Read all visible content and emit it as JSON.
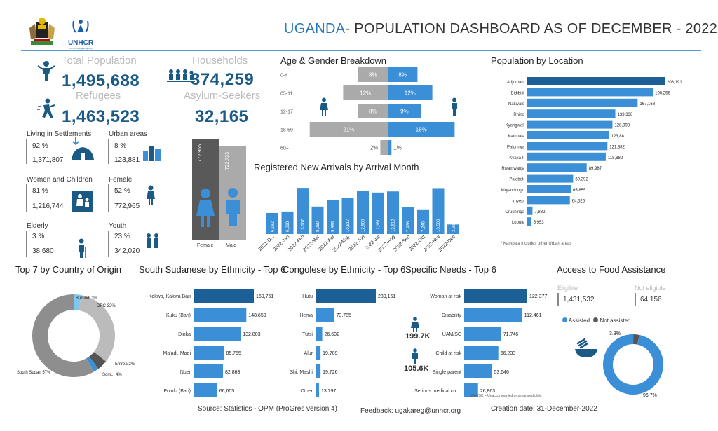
{
  "header": {
    "title_country": "UGANDA",
    "title_rest": "- POPULATION DASHBOARD AS OF DECEMBER - 2022",
    "logo_text": "UNHCR",
    "logo_subtext": "The UN Refugee Agency"
  },
  "kpis": {
    "total_population_label": "Total Population",
    "total_population": "1,495,688",
    "households_label": "Households",
    "households": "374,259",
    "refugees_label": "Refugees",
    "refugees": "1,463,523",
    "asylum_label": "Asylum-Seekers",
    "asylum": "32,165"
  },
  "demographics": {
    "settlements": {
      "label": "Living in Settlements",
      "pct": "92 %",
      "value": "1,371,807"
    },
    "urban": {
      "label": "Urban areas",
      "pct": "8 %",
      "value": "123,881"
    },
    "women_children": {
      "label": "Women and Children",
      "pct": "81 %",
      "value": "1,216,744"
    },
    "female": {
      "label": "Female",
      "pct": "52 %",
      "value": "772,965"
    },
    "elderly": {
      "label": "Elderly",
      "pct": "3 %",
      "value": "38,680"
    },
    "youth": {
      "label": "Youth",
      "pct": "23 %",
      "value": "342,020"
    }
  },
  "gender_bars": {
    "female": {
      "label": "Female",
      "value": "772,965"
    },
    "male": {
      "label": "Male",
      "value": "722,723"
    }
  },
  "sections": {
    "age_gender": "Age & Gender Breakdown",
    "arrivals": "Registered New Arrivals by Arrival Month",
    "location": "Population by Location",
    "location_note": "* Kampala includes other Urban areas",
    "origin": "Top 7 by Country of Origin",
    "ssd": "South Sudanese by Ethnicity - Top 6",
    "cod": "Congolese by Ethnicity - Top 6",
    "needs": "Specific Needs - Top 6",
    "needs_note": "UAM/SC = Unaccompanied or separated child",
    "food": "Access to Food Assistance"
  },
  "needs_people": {
    "female": "199.7K",
    "male": "105.6K"
  },
  "food": {
    "eligible_label": "Eligible",
    "eligible": "1,431,532",
    "not_eligible_label": "Not eligible",
    "not_eligible": "64,156",
    "legend_assisted": "Assisted",
    "legend_not_assisted": "Not assisted"
  },
  "footer": {
    "source": "Source: Statistics - OPM (ProGres version 4)",
    "feedback": "Feedback: ugakareg@unhcr.org",
    "created": "Creation date: 31-December-2022"
  },
  "colors": {
    "accent": "#1c5a86",
    "bar": "#3a8fd6",
    "bar_dark": "#1c5f96",
    "grey": "#999999"
  },
  "chart_data": [
    {
      "id": "age_gender",
      "type": "bar",
      "title": "Age & Gender Breakdown",
      "categories": [
        "0-4",
        "05-11",
        "12-17",
        "18-59",
        "60+"
      ],
      "series": [
        {
          "name": "Female",
          "values": [
            8,
            12,
            8,
            21,
            2
          ],
          "labels": [
            "8%",
            "12%",
            "8%",
            "21%",
            "2%"
          ]
        },
        {
          "name": "Male",
          "values": [
            8,
            12,
            9,
            18,
            1
          ],
          "labels": [
            "8%",
            "12%",
            "9%",
            "18%",
            "1%"
          ]
        }
      ]
    },
    {
      "id": "arrivals",
      "type": "bar",
      "title": "Registered New Arrivals by Arrival Month",
      "categories": [
        "2021-D...",
        "2022-Jan",
        "2022-Feb",
        "2022-Mar",
        "2022-Apr",
        "2022-May",
        "2022-Jun",
        "2022-Jul",
        "2022-Aug",
        "2022-Sep",
        "2022-Oct",
        "2022-Nov",
        "2022-Dec"
      ],
      "values": [
        6182,
        6618,
        13567,
        8069,
        9998,
        10617,
        12589,
        12181,
        12512,
        7976,
        7246,
        13500,
        2816
      ],
      "labels": [
        "6,182",
        "6,618",
        "13,567",
        "8,069",
        "9,998",
        "10,617",
        "12,589",
        "12,181",
        "12,512",
        "7,976",
        "7,246",
        "13,500",
        "2,816"
      ]
    },
    {
      "id": "location",
      "type": "bar",
      "title": "Population by Location",
      "categories": [
        "Adjumani",
        "Bidibidi",
        "Nakivale",
        "Rhino",
        "Kyangwali",
        "Kampala",
        "Palorinya",
        "Kyaka II",
        "Rwamwanja",
        "Palabek",
        "Kiryandongo",
        "Imvepi",
        "Oruchinga",
        "Lobule"
      ],
      "values": [
        208191,
        190256,
        167168,
        133336,
        128998,
        123881,
        121382,
        118882,
        89987,
        69392,
        65855,
        64526,
        7882,
        5953
      ],
      "labels": [
        "208,191",
        "190,256",
        "167,168",
        "133,336",
        "128,998",
        "123,881",
        "121,382",
        "118,882",
        "89,987",
        "69,392",
        "65,855",
        "64,526",
        "7,882",
        "5,953"
      ]
    },
    {
      "id": "origin",
      "type": "pie",
      "title": "Top 7 by Country of Origin",
      "labels": [
        "South Sudan 57%",
        "DRC 32%",
        "Burundi 3%",
        "Eritrea 2%",
        "Som... 4%"
      ],
      "values": [
        57,
        32,
        3,
        2,
        4
      ]
    },
    {
      "id": "ssd",
      "type": "bar",
      "title": "South Sudanese by Ethnicity - Top 6",
      "categories": [
        "Kakwa, Kakwa Bari",
        "Kuku (Bari)",
        "Dinka",
        "Ma'adi, Madi",
        "Nuer",
        "Pojulu (Bari)"
      ],
      "values": [
        169761,
        148659,
        132803,
        85755,
        82863,
        66605
      ],
      "labels": [
        "169,761",
        "148,659",
        "132,803",
        "85,755",
        "82,863",
        "66,605"
      ]
    },
    {
      "id": "cod",
      "type": "bar",
      "title": "Congolese by Ethnicity - Top 6",
      "categories": [
        "Hutu",
        "Hema",
        "Tutsi",
        "Alur",
        "Shi, Mashi",
        "Other"
      ],
      "values": [
        239151,
        73785,
        26602,
        19789,
        19726,
        13797
      ],
      "labels": [
        "239,151",
        "73,785",
        "26,602",
        "19,789",
        "19,726",
        "13,797"
      ]
    },
    {
      "id": "needs",
      "type": "bar",
      "title": "Specific Needs - Top 6",
      "categories": [
        "Woman at risk",
        "Disability",
        "UAM/SC",
        "Child at risk",
        "Single parent",
        "Serious medical co ..."
      ],
      "values": [
        122377,
        112461,
        71746,
        66233,
        53646,
        26863
      ],
      "labels": [
        "122,377",
        "112,461",
        "71,746",
        "66,233",
        "53,646",
        "26,863"
      ]
    },
    {
      "id": "food",
      "type": "pie",
      "title": "Access to Food Assistance",
      "labels": [
        "96.7%",
        "3.3%"
      ],
      "series_names": [
        "Assisted",
        "Not assisted"
      ],
      "values": [
        96.7,
        3.3
      ]
    }
  ]
}
